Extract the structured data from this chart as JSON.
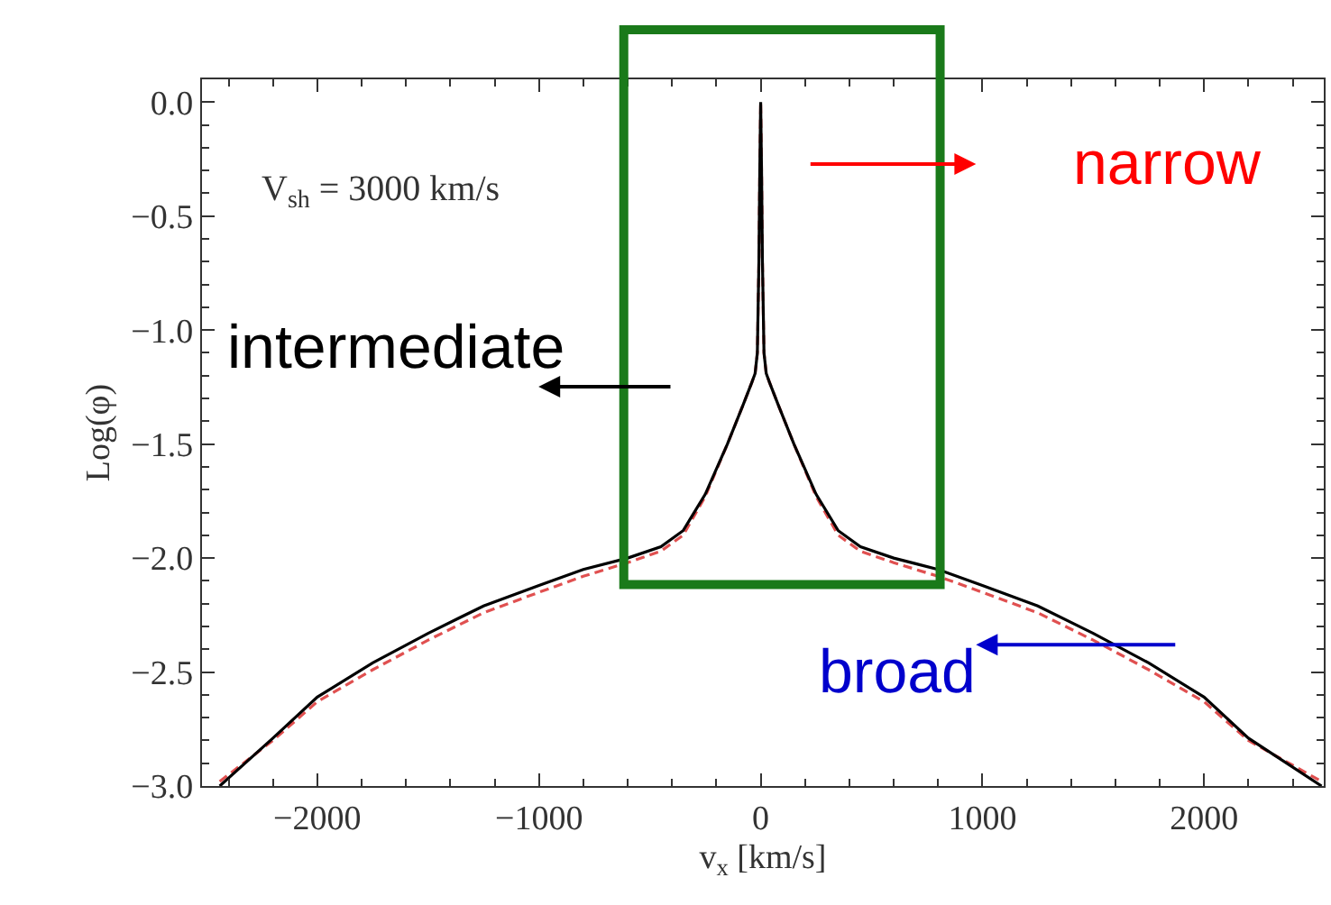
{
  "chart_data": {
    "type": "line",
    "xlabel": "v$_{x}$ [km/s]",
    "ylabel": "Log(φ)",
    "x": [
      -2440,
      -2200,
      -2000,
      -1750,
      -1500,
      -1250,
      -1000,
      -800,
      -600,
      -450,
      -350,
      -250,
      -150,
      -80,
      -40,
      -25,
      -15,
      -8,
      -4,
      0,
      4,
      8,
      15,
      25,
      40,
      80,
      150,
      250,
      350,
      450,
      600,
      800,
      1000,
      1250,
      1500,
      1750,
      2000,
      2200,
      2530
    ],
    "series": [
      {
        "color": "#000000",
        "line_style": "solid",
        "values": [
          -3.0,
          -2.79,
          -2.61,
          -2.46,
          -2.33,
          -2.21,
          -2.12,
          -2.05,
          -2.0,
          -1.95,
          -1.88,
          -1.72,
          -1.5,
          -1.33,
          -1.23,
          -1.19,
          -1.1,
          -0.7,
          -0.3,
          0.0,
          -0.3,
          -0.7,
          -1.1,
          -1.19,
          -1.23,
          -1.33,
          -1.5,
          -1.72,
          -1.88,
          -1.95,
          -2.0,
          -2.05,
          -2.12,
          -2.21,
          -2.33,
          -2.46,
          -2.61,
          -2.79,
          -3.0
        ]
      },
      {
        "color": "#e05050",
        "line_style": "dashed",
        "values": [
          -2.98,
          -2.8,
          -2.63,
          -2.49,
          -2.36,
          -2.24,
          -2.15,
          -2.08,
          -2.02,
          -1.97,
          -1.9,
          -1.73,
          -1.5,
          -1.33,
          -1.23,
          -1.19,
          -1.1,
          -0.7,
          -0.3,
          0.0,
          -0.3,
          -0.7,
          -1.1,
          -1.19,
          -1.23,
          -1.33,
          -1.5,
          -1.73,
          -1.9,
          -1.97,
          -2.02,
          -2.08,
          -2.15,
          -2.24,
          -2.36,
          -2.49,
          -2.63,
          -2.8,
          -2.98
        ]
      }
    ],
    "xlim": [
      -2520,
      2540
    ],
    "ylim": [
      -3.0,
      0.1
    ],
    "xticks": [
      {
        "value": -2000,
        "label": "−2000"
      },
      {
        "value": -1000,
        "label": "−1000"
      },
      0,
      1000,
      2000
    ],
    "yticks": [
      {
        "value": -3,
        "label": "−3.0"
      },
      {
        "value": -2.5,
        "label": "−2.5"
      },
      {
        "value": -2,
        "label": "−2.0"
      },
      {
        "value": -1.5,
        "label": "−1.5"
      },
      {
        "value": -1,
        "label": "−1.0"
      },
      {
        "value": -0.5,
        "label": "−0.5"
      },
      {
        "value": 0,
        "label": "0.0"
      }
    ],
    "annotations": [
      "V$_{sh}$ = 3000 km/s",
      "narrow",
      "intermediate",
      "broad"
    ],
    "marker": "none"
  }
}
